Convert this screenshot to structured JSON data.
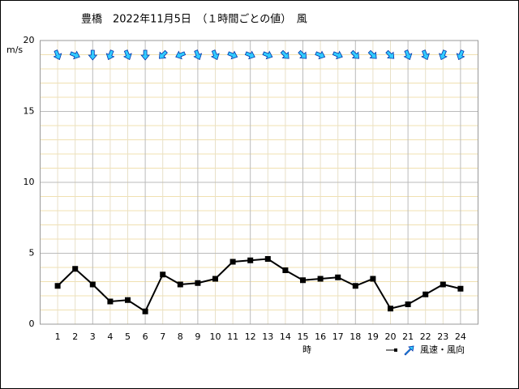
{
  "chart_data": {
    "type": "line",
    "title": "豊橋　2022年11月5日　（１時間ごとの値）　風",
    "y_label": "m/s",
    "x_label": "時",
    "legend": "風速・風向",
    "categories": [
      "1",
      "2",
      "3",
      "4",
      "5",
      "6",
      "7",
      "8",
      "9",
      "10",
      "11",
      "12",
      "13",
      "14",
      "15",
      "16",
      "17",
      "18",
      "19",
      "20",
      "21",
      "22",
      "23",
      "24"
    ],
    "series": [
      {
        "name": "風速",
        "color": "#000000",
        "values": [
          2.7,
          3.9,
          2.8,
          1.6,
          1.7,
          0.9,
          3.5,
          2.8,
          2.9,
          3.2,
          4.4,
          4.5,
          4.6,
          3.8,
          3.1,
          3.2,
          3.3,
          2.7,
          3.2,
          1.1,
          1.4,
          2.1,
          2.8,
          2.5
        ]
      }
    ],
    "directions": [
      337.5,
      292.5,
      0,
      22.5,
      337.5,
      0,
      45,
      67.5,
      337.5,
      337.5,
      292.5,
      292.5,
      292.5,
      315,
      315,
      292.5,
      292.5,
      315,
      315,
      315,
      337.5,
      337.5,
      22.5,
      22.5
    ],
    "arrow_color": "#33ccff",
    "ylim": [
      0,
      20
    ],
    "yticks": [
      0,
      5,
      10,
      15,
      20
    ],
    "yticks_minor": [
      1,
      2,
      3,
      4,
      6,
      7,
      8,
      9,
      11,
      12,
      13,
      14,
      16,
      17,
      18,
      19
    ],
    "grid": true
  }
}
